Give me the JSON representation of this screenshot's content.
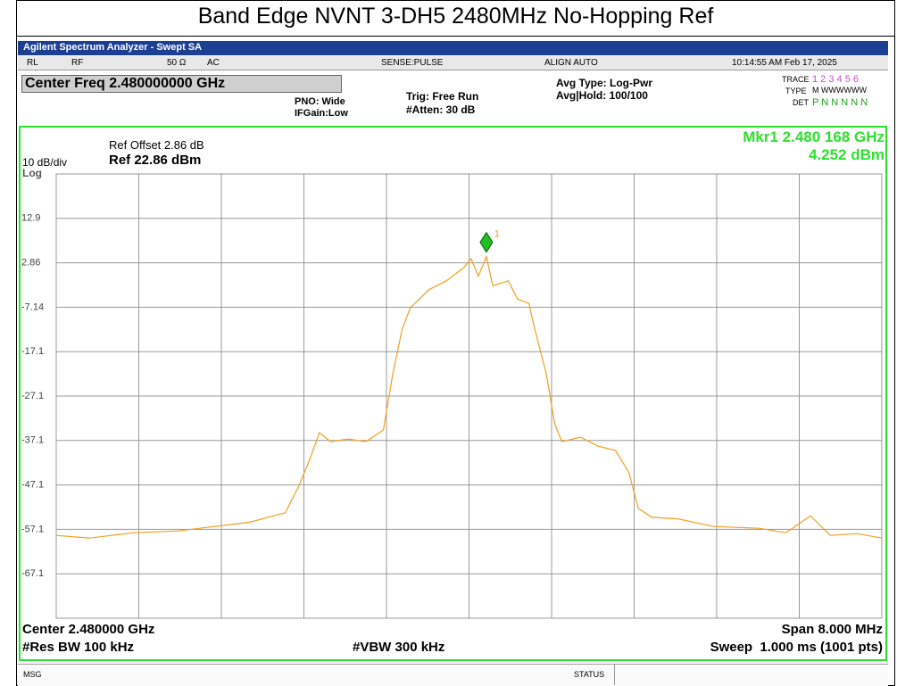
{
  "title": "Band Edge NVNT 3-DH5 2480MHz No-Hopping Ref",
  "ui": {
    "app_title": "Agilent Spectrum Analyzer - Swept SA",
    "status_row": [
      "RL",
      "RF",
      "50 Ω",
      "AC",
      "SENSE:PULSE",
      "ALIGN AUTO",
      "10:14:55 AM Feb 17, 2025"
    ],
    "center_freq": "Center Freq 2.480000000 GHz",
    "pno": "PNO: Wide",
    "ifgain": "IFGain:Low",
    "trig": "Trig: Free Run",
    "atten": "#Atten: 30 dB",
    "avg_type": "Avg Type: Log-Pwr",
    "avg_hold": "Avg|Hold: 100/100",
    "trace_label": "TRACE",
    "trace_value": "1 2 3 4 5 6",
    "type_label": "TYPE",
    "type_value": "M WWWWWW",
    "det_label": "DET",
    "det_value": "P N N N N N",
    "ref_offset": "Ref Offset 2.86 dB",
    "scale": "10 dB/div",
    "ref_level": "Ref 22.86 dBm",
    "log": "Log",
    "marker_freq": "Mkr1 2.480 168 GHz",
    "marker_level": "4.252 dBm",
    "center": "Center 2.480000 GHz",
    "span": "Span 8.000 MHz",
    "rbw": "#Res BW 100 kHz",
    "vbw": "#VBW 300 kHz",
    "sweep": "Sweep  1.000 ms (1001 pts)",
    "msg": "MSG",
    "status": "STATUS"
  },
  "chart_data": {
    "type": "line",
    "color": "#f0a020",
    "grid": true,
    "xlim": [
      2.476,
      2.484
    ],
    "ylim": [
      -77.14,
      22.86
    ],
    "yticks": [
      {
        "value": 12.86,
        "label": "12.9"
      },
      2.86,
      -7.14,
      {
        "value": -17.14,
        "label": "-17.1"
      },
      {
        "value": -27.14,
        "label": "-27.1"
      },
      {
        "value": -37.14,
        "label": "-37.1"
      },
      {
        "value": -47.14,
        "label": "-47.1"
      },
      {
        "value": -57.14,
        "label": "-57.1"
      },
      {
        "value": -67.14,
        "label": "-67.1"
      }
    ],
    "x": [
      2.476,
      2.47632,
      2.47675,
      2.47718,
      2.47753,
      2.47788,
      2.47822,
      2.47835,
      2.47844,
      2.47855,
      2.47866,
      2.47883,
      2.479,
      2.47917,
      2.47926,
      2.47935,
      2.47943,
      2.47961,
      2.47978,
      2.47995,
      2.48002,
      2.48009,
      2.480168,
      2.48023,
      2.48038,
      2.48047,
      2.48058,
      2.48064,
      2.48075,
      2.48083,
      2.4809,
      2.48108,
      2.48125,
      2.48142,
      2.48155,
      2.48164,
      2.48177,
      2.48203,
      2.48237,
      2.48281,
      2.48307,
      2.48331,
      2.4835,
      2.48376,
      2.484
    ],
    "values": [
      -58.5,
      -59.1,
      -57.9,
      -57.5,
      -56.5,
      -55.5,
      -53.4,
      -47.4,
      -42.4,
      -35.4,
      -37.4,
      -36.8,
      -37.4,
      -34.8,
      -22.3,
      -12.3,
      -7.3,
      -3.2,
      -1.2,
      1.8,
      3.8,
      -0.2,
      4.252,
      -2.3,
      -1.2,
      -5.3,
      -6.3,
      -12.3,
      -22.3,
      -33.4,
      -37.4,
      -36.4,
      -38.4,
      -39.4,
      -44.4,
      -52.4,
      -54.4,
      -54.8,
      -56.5,
      -56.9,
      -57.9,
      -54.1,
      -58.5,
      -58.1,
      -59.1
    ],
    "marker": {
      "x": 2.480168,
      "y": 4.252,
      "label": "1"
    }
  }
}
